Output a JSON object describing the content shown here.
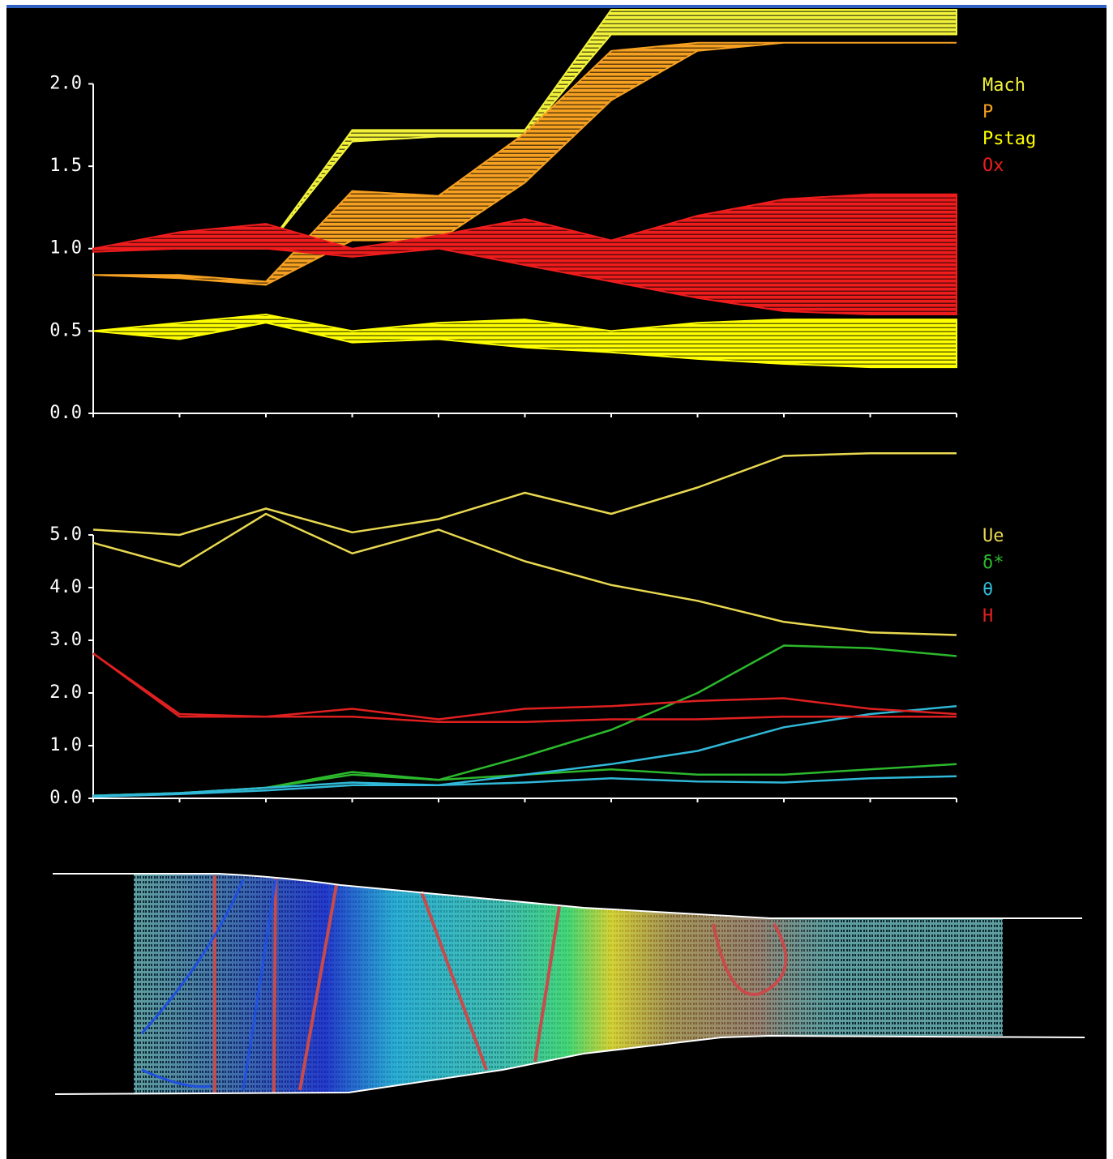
{
  "chart_data": [
    {
      "type": "band",
      "categories": [
        null,
        null,
        null,
        null,
        null,
        null,
        null,
        null,
        null,
        null,
        null
      ],
      "ylim": [
        0,
        2.45
      ],
      "yticks": [
        {
          "value": 0,
          "label": "0.0"
        },
        {
          "value": 0.5,
          "label": "0.5"
        },
        {
          "value": 1,
          "label": "1.0"
        },
        {
          "value": 1.5,
          "label": "1.5"
        },
        {
          "value": 2,
          "label": "2.0"
        }
      ],
      "series": [
        {
          "name": "Mach",
          "color": "#f2f23a",
          "high": [
            1.0,
            1.0,
            1.0,
            1.72,
            1.72,
            1.72,
            2.45,
            2.45,
            2.45,
            2.45,
            2.45
          ],
          "low": [
            1.0,
            1.0,
            1.0,
            1.65,
            1.68,
            1.68,
            2.3,
            2.3,
            2.3,
            2.3,
            2.3
          ]
        },
        {
          "name": "P",
          "color": "#f5a020",
          "high": [
            0.84,
            0.84,
            0.8,
            1.35,
            1.32,
            1.7,
            2.2,
            2.25,
            2.25,
            2.25,
            2.25
          ],
          "low": [
            0.84,
            0.82,
            0.78,
            1.05,
            1.05,
            1.4,
            1.9,
            2.2,
            2.25,
            2.25,
            2.25
          ]
        },
        {
          "name": "Pstag",
          "color": "#ffff00",
          "high": [
            0.5,
            0.55,
            0.6,
            0.5,
            0.55,
            0.57,
            0.5,
            0.55,
            0.57,
            0.57,
            0.57
          ],
          "low": [
            0.5,
            0.45,
            0.55,
            0.43,
            0.45,
            0.4,
            0.37,
            0.33,
            0.3,
            0.28,
            0.28
          ]
        },
        {
          "name": "Ox",
          "color": "#ee1c1c",
          "high": [
            1.0,
            1.1,
            1.15,
            1.0,
            1.08,
            1.18,
            1.05,
            1.2,
            1.3,
            1.33,
            1.33
          ],
          "low": [
            0.98,
            1.0,
            1.0,
            0.95,
            1.0,
            0.9,
            0.8,
            0.7,
            0.62,
            0.6,
            0.6
          ]
        }
      ]
    },
    {
      "type": "line",
      "categories": [
        null,
        null,
        null,
        null,
        null,
        null,
        null,
        null,
        null,
        null,
        null
      ],
      "ylim": [
        0,
        6.8
      ],
      "yticks": [
        {
          "value": 0,
          "label": "0.0"
        },
        {
          "value": 1,
          "label": "1.0"
        },
        {
          "value": 2,
          "label": "2.0"
        },
        {
          "value": 3,
          "label": "3.0"
        },
        {
          "value": 4,
          "label": "4.0"
        },
        {
          "value": 5,
          "label": "5.0"
        }
      ],
      "series": [
        {
          "name": "Ue",
          "color": "#e8d850",
          "lines": [
            [
              5.1,
              5.0,
              5.5,
              5.05,
              5.3,
              5.8,
              5.4,
              5.9,
              6.5,
              6.55,
              6.55
            ],
            [
              4.85,
              4.4,
              5.4,
              4.65,
              5.1,
              4.5,
              4.05,
              3.75,
              3.35,
              3.15,
              3.1
            ]
          ]
        },
        {
          "name": "δ*",
          "color": "#2cb82c",
          "lines": [
            [
              0.05,
              0.1,
              0.2,
              0.5,
              0.35,
              0.8,
              1.3,
              2.0,
              2.9,
              2.85,
              2.7
            ],
            [
              0.05,
              0.1,
              0.2,
              0.45,
              0.35,
              0.45,
              0.55,
              0.45,
              0.45,
              0.55,
              0.65
            ]
          ]
        },
        {
          "name": "θ",
          "color": "#30b8d8",
          "lines": [
            [
              0.05,
              0.1,
              0.2,
              0.3,
              0.25,
              0.45,
              0.65,
              0.9,
              1.35,
              1.6,
              1.75
            ],
            [
              0.03,
              0.08,
              0.15,
              0.25,
              0.25,
              0.3,
              0.38,
              0.32,
              0.3,
              0.38,
              0.42
            ]
          ]
        },
        {
          "name": "H",
          "color": "#e02020",
          "lines": [
            [
              2.75,
              1.6,
              1.55,
              1.7,
              1.5,
              1.7,
              1.75,
              1.85,
              1.9,
              1.7,
              1.6
            ],
            [
              2.75,
              1.55,
              1.55,
              1.55,
              1.45,
              1.45,
              1.5,
              1.5,
              1.55,
              1.55,
              1.55
            ]
          ]
        }
      ]
    }
  ]
}
